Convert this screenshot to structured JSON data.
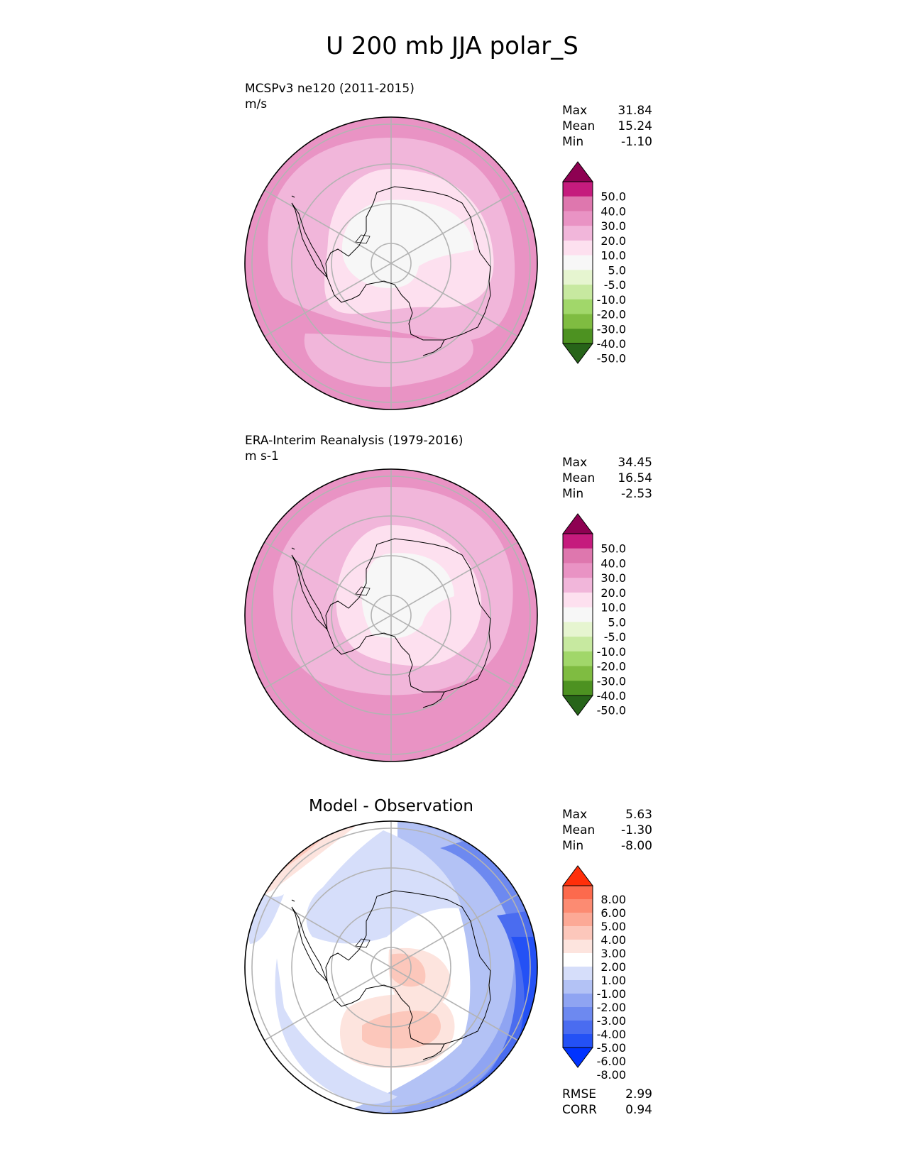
{
  "figure": {
    "title": "U 200 mb JJA polar_S"
  },
  "colors": {
    "test_ref_levels": [
      "#276419",
      "#4d9221",
      "#7fbc41",
      "#a1d76a",
      "#c7e9a0",
      "#e6f5d0",
      "#f7f7f7",
      "#fde0ef",
      "#f1b6da",
      "#e993c4",
      "#de77ae",
      "#c51b7d",
      "#8e0152"
    ],
    "diff_levels": [
      "#0033ff",
      "#2451f5",
      "#4a6cf0",
      "#6d89f0",
      "#8fa4f2",
      "#b3c2f5",
      "#d6defa",
      "#ffffff",
      "#fde4de",
      "#fcc7bb",
      "#fca996",
      "#fc8b72",
      "#fc6a4d",
      "#ff2f0a"
    ]
  },
  "panels": [
    {
      "id": "test",
      "label1": "MCSPv3 ne120 (2011-2015)",
      "label2": "m/s",
      "stats": {
        "max_label": "Max",
        "max": "31.84",
        "mean_label": "Mean",
        "mean": "15.24",
        "min_label": "Min",
        "min": "-1.10"
      },
      "colorbar_ticks": [
        "50.0",
        "40.0",
        "30.0",
        "20.0",
        "10.0",
        "5.0",
        "-5.0",
        "-10.0",
        "-20.0",
        "-30.0",
        "-40.0",
        "-50.0"
      ]
    },
    {
      "id": "reference",
      "label1": "ERA-Interim Reanalysis (1979-2016)",
      "label2": "m s-1",
      "stats": {
        "max_label": "Max",
        "max": "34.45",
        "mean_label": "Mean",
        "mean": "16.54",
        "min_label": "Min",
        "min": "-2.53"
      },
      "colorbar_ticks": [
        "50.0",
        "40.0",
        "30.0",
        "20.0",
        "10.0",
        "5.0",
        "-5.0",
        "-10.0",
        "-20.0",
        "-30.0",
        "-40.0",
        "-50.0"
      ]
    },
    {
      "id": "difference",
      "title": "Model - Observation",
      "stats": {
        "max_label": "Max",
        "max": "5.63",
        "mean_label": "Mean",
        "mean": "-1.30",
        "min_label": "Min",
        "min": "-8.00"
      },
      "colorbar_ticks": [
        "8.00",
        "6.00",
        "5.00",
        "4.00",
        "3.00",
        "2.00",
        "1.00",
        "-1.00",
        "-2.00",
        "-3.00",
        "-4.00",
        "-5.00",
        "-6.00",
        "-8.00"
      ],
      "extra_stats": {
        "rmse_label": "RMSE",
        "rmse": "2.99",
        "corr_label": "CORR",
        "corr": "0.94"
      }
    }
  ]
}
